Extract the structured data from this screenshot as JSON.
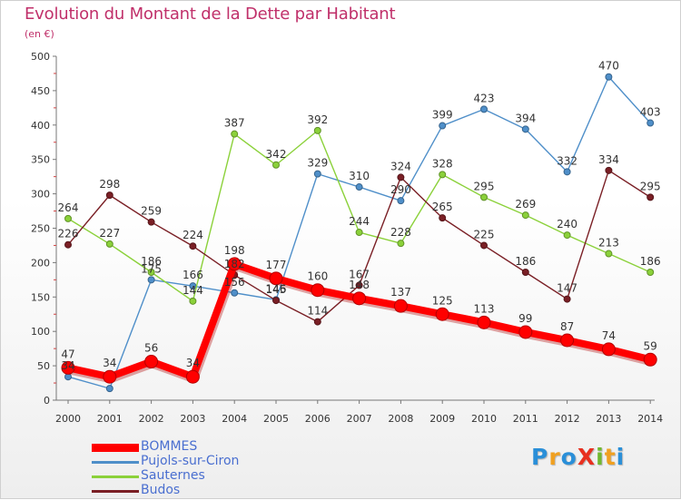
{
  "title": "Evolution du Montant de la Dette par Habitant",
  "subtitle": "(en €)",
  "logo": {
    "text": "ProXiti",
    "letters": [
      {
        "ch": "P",
        "color": "#2a8fd8"
      },
      {
        "ch": "r",
        "color": "#f0a020"
      },
      {
        "ch": "o",
        "color": "#2a8fd8"
      },
      {
        "ch": "X",
        "color": "#e83020"
      },
      {
        "ch": "i",
        "color": "#70b830"
      },
      {
        "ch": "t",
        "color": "#f0a020"
      },
      {
        "ch": "i",
        "color": "#2a8fd8"
      }
    ]
  },
  "chart_data": {
    "type": "line",
    "x": [
      "2000",
      "2001",
      "2002",
      "2003",
      "2004",
      "2005",
      "2006",
      "2007",
      "2008",
      "2009",
      "2010",
      "2011",
      "2012",
      "2013",
      "2014"
    ],
    "ylim": [
      0,
      500
    ],
    "yticks": [
      0,
      50,
      100,
      150,
      200,
      250,
      300,
      350,
      400,
      450,
      500
    ],
    "grid": false,
    "legend_position": "bottom-left",
    "series": [
      {
        "name": "Pujols-sur-Ciron",
        "color": "#4f8fc9",
        "values": [
          34,
          17,
          175,
          166,
          156,
          146,
          329,
          310,
          290,
          399,
          423,
          394,
          332,
          470,
          403
        ],
        "labels": [
          "34",
          "",
          "175",
          "166",
          "156",
          "146",
          "329",
          "310",
          "290",
          "399",
          "423",
          "394",
          "332",
          "470",
          "403"
        ]
      },
      {
        "name": "Sauternes",
        "color": "#8bd13a",
        "values": [
          264,
          227,
          186,
          144,
          387,
          342,
          392,
          244,
          228,
          328,
          295,
          269,
          240,
          213,
          186
        ],
        "labels": [
          "264",
          "227",
          "186",
          "144",
          "387",
          "342",
          "392",
          "244",
          "228",
          "328",
          "295",
          "269",
          "240",
          "213",
          "186"
        ]
      },
      {
        "name": "Budos",
        "color": "#7a1f25",
        "values": [
          226,
          298,
          259,
          224,
          182,
          145,
          114,
          167,
          324,
          265,
          225,
          186,
          147,
          334,
          295
        ],
        "labels": [
          "226",
          "298",
          "259",
          "224",
          "182",
          "145",
          "114",
          "167",
          "324",
          "265",
          "225",
          "186",
          "147",
          "334",
          "295"
        ]
      },
      {
        "name": "BOMMES",
        "color": "#ff0000",
        "emphasis": true,
        "values": [
          47,
          34,
          56,
          34,
          198,
          177,
          160,
          148,
          137,
          125,
          113,
          99,
          87,
          74,
          59
        ],
        "labels": [
          "47",
          "34",
          "56",
          "34",
          "198",
          "177",
          "160",
          "148",
          "137",
          "125",
          "113",
          "99",
          "87",
          "74",
          "59"
        ]
      }
    ],
    "legend_order": [
      "BOMMES",
      "Pujols-sur-Ciron",
      "Sauternes",
      "Budos"
    ]
  }
}
